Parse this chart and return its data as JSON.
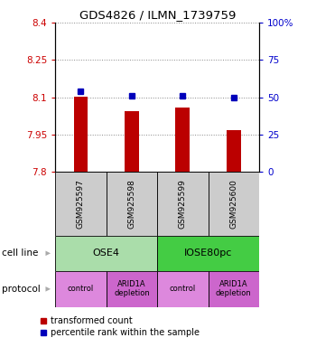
{
  "title": "GDS4826 / ILMN_1739759",
  "samples": [
    "GSM925597",
    "GSM925598",
    "GSM925599",
    "GSM925600"
  ],
  "bar_values": [
    8.102,
    8.045,
    8.058,
    7.968
  ],
  "blue_values": [
    54,
    51,
    51,
    50
  ],
  "ylim_left": [
    7.8,
    8.4
  ],
  "ylim_right": [
    0,
    100
  ],
  "yticks_left": [
    7.8,
    7.95,
    8.1,
    8.25,
    8.4
  ],
  "yticks_right": [
    0,
    25,
    50,
    75,
    100
  ],
  "ytick_labels_left": [
    "7.8",
    "7.95",
    "8.1",
    "8.25",
    "8.4"
  ],
  "ytick_labels_right": [
    "0",
    "25",
    "50",
    "75",
    "100%"
  ],
  "bar_color": "#bb0000",
  "blue_color": "#0000bb",
  "bar_bottom": 7.8,
  "cell_line_groups": [
    {
      "label": "OSE4",
      "color": "#aaddaa",
      "cols": [
        0,
        1
      ]
    },
    {
      "label": "IOSE80pc",
      "color": "#44cc44",
      "cols": [
        2,
        3
      ]
    }
  ],
  "protocol_colors": [
    "#dd88dd",
    "#cc66cc",
    "#dd88dd",
    "#cc66cc"
  ],
  "protocol_labels": [
    "control",
    "ARID1A\ndepletion",
    "control",
    "ARID1A\ndepletion"
  ],
  "legend_red_label": "transformed count",
  "legend_blue_label": "percentile rank within the sample",
  "cell_line_label": "cell line",
  "protocol_label": "protocol",
  "left_tick_color": "#cc0000",
  "right_tick_color": "#0000cc",
  "arrow_color": "#aaaaaa",
  "sample_box_color": "#cccccc",
  "dotted_line_color": "#888888",
  "bg_color": "#ffffff"
}
